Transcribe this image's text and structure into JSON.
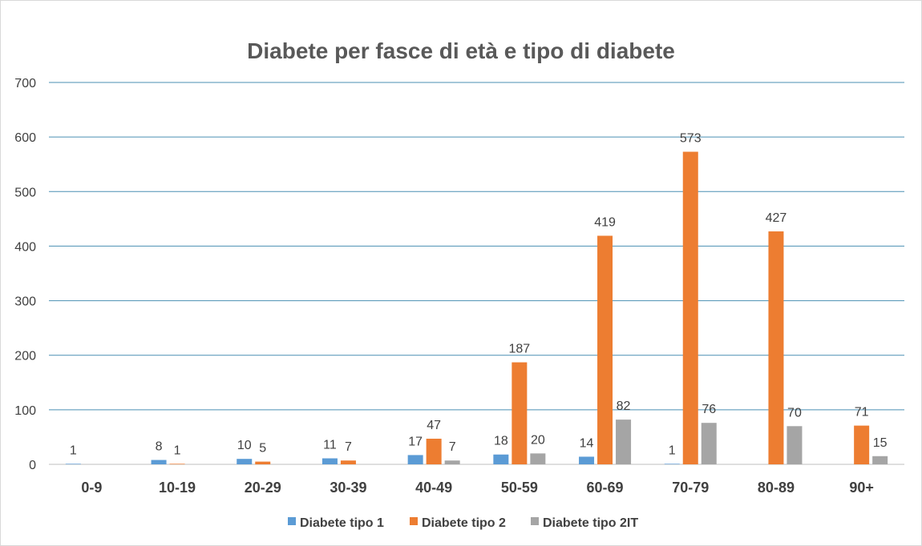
{
  "chart_data": {
    "type": "bar",
    "title": "Diabete per fasce di età e tipo di diabete",
    "xlabel": "",
    "ylabel": "",
    "ylim": [
      0,
      700
    ],
    "yticks": [
      0,
      100,
      200,
      300,
      400,
      500,
      600,
      700
    ],
    "grid": true,
    "legend_position": "bottom",
    "categories": [
      "0-9",
      "10-19",
      "20-29",
      "30-39",
      "40-49",
      "50-59",
      "60-69",
      "70-79",
      "80-89",
      "90+"
    ],
    "series": [
      {
        "name": "Diabete tipo 1",
        "color": "#5b9bd5",
        "values": [
          1,
          8,
          10,
          11,
          17,
          18,
          14,
          1,
          null,
          null
        ],
        "labels": [
          "1",
          "8",
          "10",
          "11",
          "17",
          "18",
          "14",
          "1",
          "",
          ""
        ]
      },
      {
        "name": "Diabete tipo 2",
        "color": "#ed7d31",
        "values": [
          null,
          1,
          5,
          7,
          47,
          187,
          419,
          573,
          427,
          71
        ],
        "labels": [
          "",
          "1",
          "5",
          "7",
          "47",
          "187",
          "419",
          "573",
          "427",
          "71"
        ]
      },
      {
        "name": "Diabete tipo 2IT",
        "color": "#a5a5a5",
        "values": [
          null,
          null,
          null,
          null,
          7,
          20,
          82,
          76,
          70,
          15
        ],
        "labels": [
          "",
          "",
          "",
          "",
          "7",
          "20",
          "82",
          "76",
          "70",
          "15"
        ]
      }
    ]
  }
}
